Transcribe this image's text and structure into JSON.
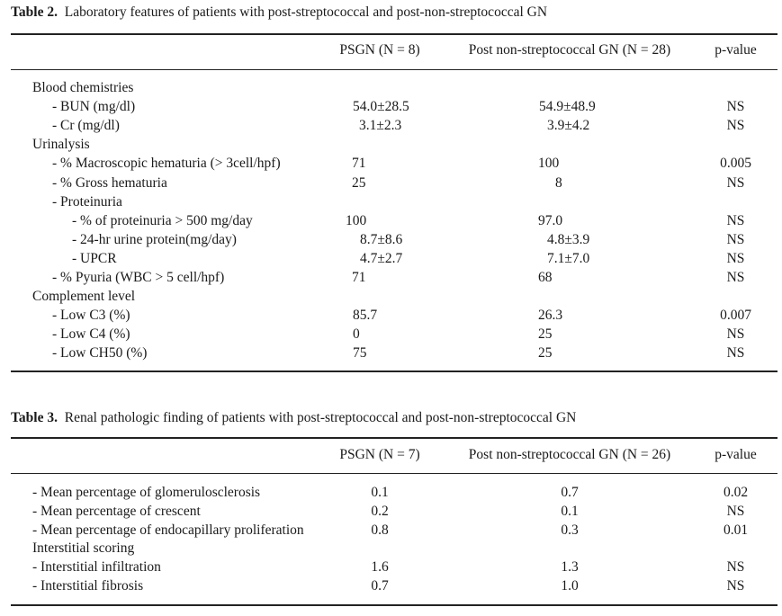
{
  "table2": {
    "label": "Table 2.",
    "title": "Laboratory features of patients with post-streptococcal and post-non-streptococcal GN",
    "headers": [
      "PSGN (N = 8)",
      "Post non-streptococcal GN (N = 28)",
      "p-value"
    ],
    "rows": [
      {
        "label": "Blood chemistries",
        "indent": 0,
        "psgn": "",
        "post": "",
        "p": ""
      },
      {
        "label": "- BUN (mg/dl)",
        "indent": 1,
        "psgn": "54.0±28.5",
        "post": "54.9±48.9",
        "p": "NS"
      },
      {
        "label": "- Cr (mg/dl)",
        "indent": 1,
        "psgn": "3.1±2.3",
        "post": "3.9±4.2",
        "p": "NS"
      },
      {
        "label": "Urinalysis",
        "indent": 0,
        "psgn": "",
        "post": "",
        "p": ""
      },
      {
        "label": "- % Macroscopic hematuria (> 3cell/hpf)",
        "indent": 1,
        "psgn": "71",
        "post": "100",
        "p": "0.005"
      },
      {
        "label": "- % Gross hematuria",
        "indent": 1,
        "psgn": "25",
        "post": "8",
        "p": "NS"
      },
      {
        "label": "- Proteinuria",
        "indent": 1,
        "psgn": "",
        "post": "",
        "p": ""
      },
      {
        "label": "- % of proteinuria > 500 mg/day",
        "indent": 2,
        "psgn": "100",
        "post": "97.0",
        "p": "NS"
      },
      {
        "label": "- 24-hr urine protein(mg/day)",
        "indent": 2,
        "psgn": "8.7±8.6",
        "post": "4.8±3.9",
        "p": "NS"
      },
      {
        "label": "- UPCR",
        "indent": 2,
        "psgn": "4.7±2.7",
        "post": "7.1±7.0",
        "p": "NS"
      },
      {
        "label": "- % Pyuria (WBC > 5 cell/hpf)",
        "indent": 1,
        "psgn": "71",
        "post": "68",
        "p": "NS"
      },
      {
        "label": "Complement level",
        "indent": 0,
        "psgn": "",
        "post": "",
        "p": ""
      },
      {
        "label": "- Low C3 (%)",
        "indent": 1,
        "psgn": "85.7",
        "post": "26.3",
        "p": "0.007"
      },
      {
        "label": "- Low C4 (%)",
        "indent": 1,
        "psgn": "0",
        "post": "25",
        "p": "NS"
      },
      {
        "label": "- Low CH50 (%)",
        "indent": 1,
        "psgn": "75",
        "post": "25",
        "p": "NS"
      }
    ]
  },
  "table3": {
    "label": "Table 3.",
    "title": "Renal pathologic finding of patients with post-streptococcal and post-non-streptococcal GN",
    "headers": [
      "PSGN (N = 7)",
      "Post non-streptococcal GN (N = 26)",
      "p-value"
    ],
    "rows": [
      {
        "label": "- Mean percentage of glomerulosclerosis",
        "indent": 0,
        "psgn": "0.1",
        "post": "0.7",
        "p": "0.02"
      },
      {
        "label": "- Mean percentage of crescent",
        "indent": 0,
        "psgn": "0.2",
        "post": "0.1",
        "p": "NS"
      },
      {
        "label": "- Mean percentage of endocapillary proliferation",
        "indent": 0,
        "psgn": "0.8",
        "post": "0.3",
        "p": "0.01"
      },
      {
        "label": "Interstitial scoring",
        "indent": 0,
        "psgn": "",
        "post": "",
        "p": ""
      },
      {
        "label": "- Interstitial infiltration",
        "indent": 0,
        "psgn": "1.6",
        "post": "1.3",
        "p": "NS"
      },
      {
        "label": "- Interstitial fibrosis",
        "indent": 0,
        "psgn": "0.7",
        "post": "1.0",
        "p": "NS"
      }
    ]
  }
}
